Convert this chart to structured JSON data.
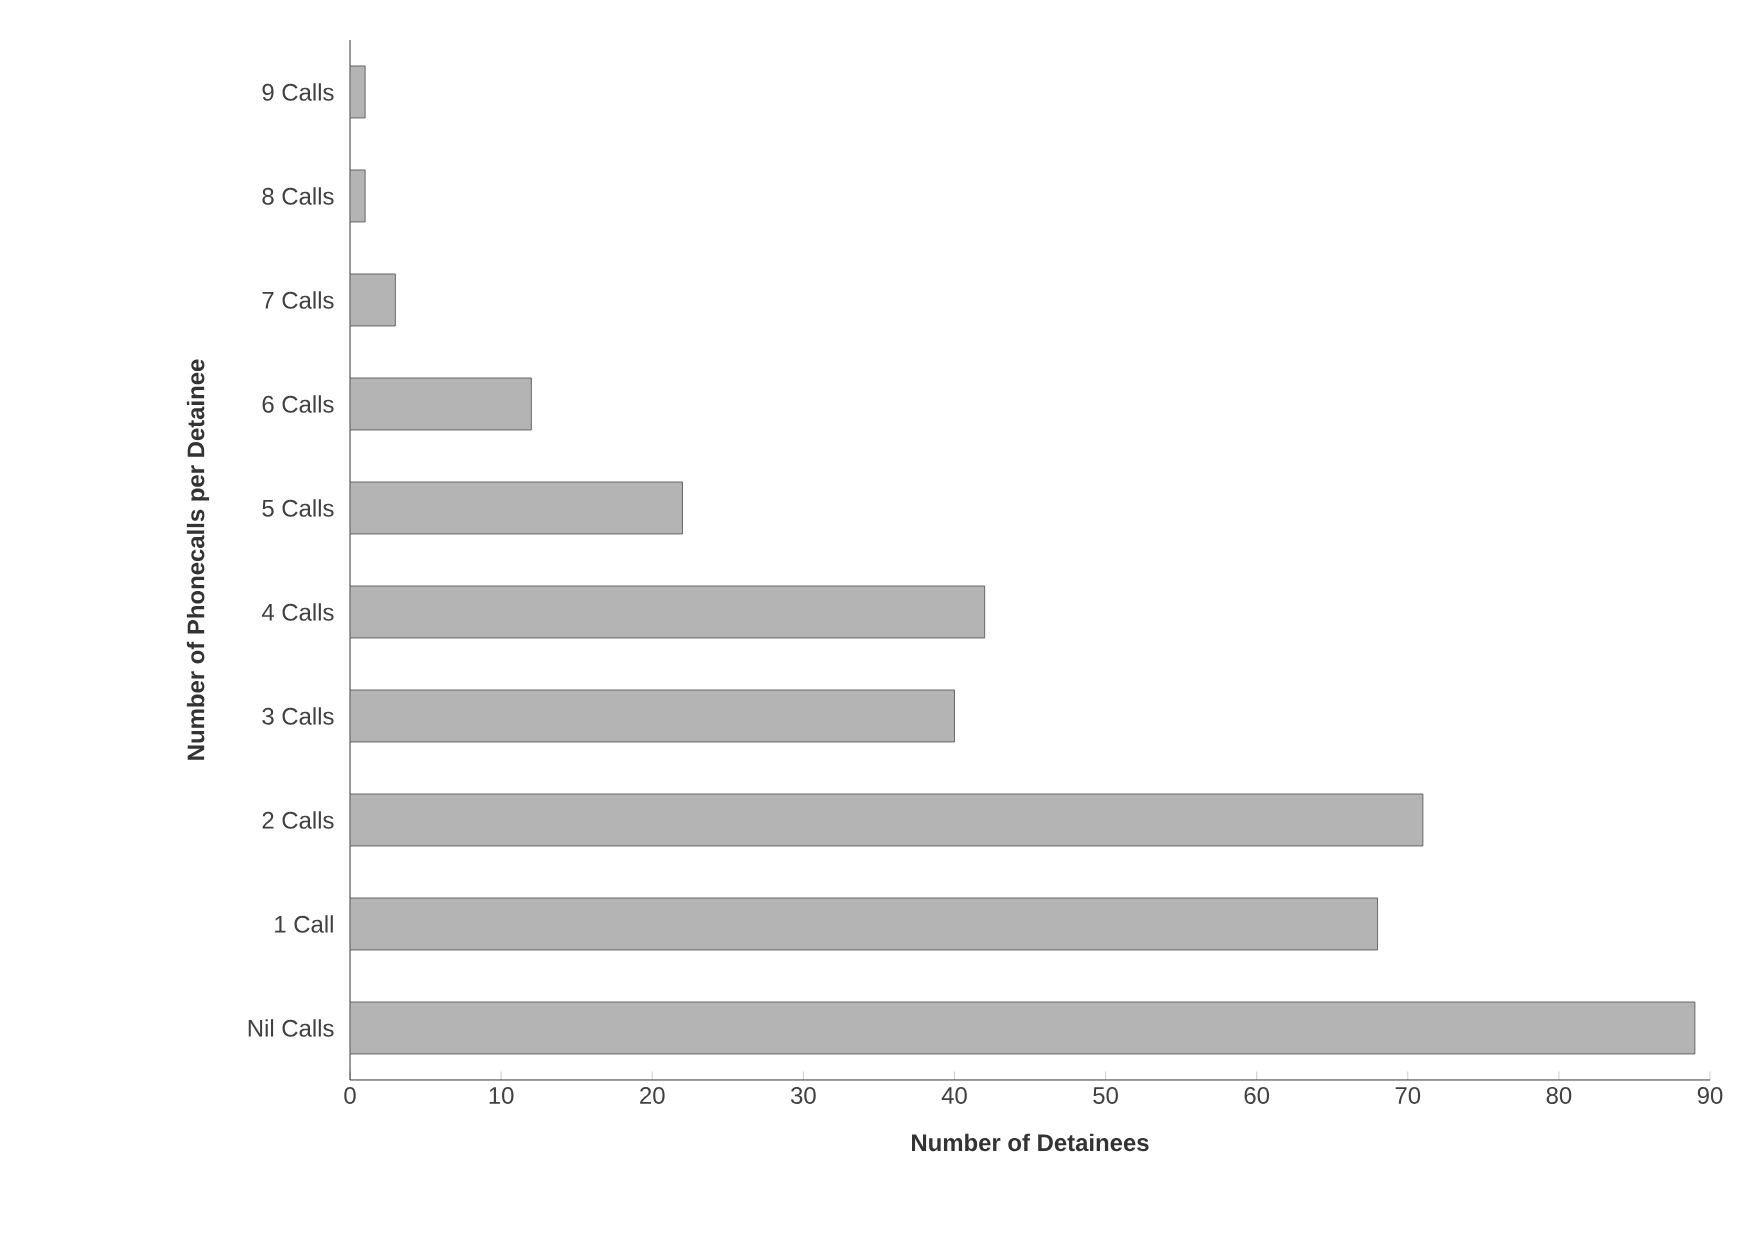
{
  "chart_data": {
    "type": "bar",
    "orientation": "horizontal",
    "xlabel": "Number of Detainees",
    "ylabel": "Number of Phonecalls per Detainee",
    "categories": [
      "9 Calls",
      "8 Calls",
      "7 Calls",
      "6 Calls",
      "5 Calls",
      "4 Calls",
      "3 Calls",
      "2 Calls",
      "1 Call",
      "Nil Calls"
    ],
    "values": [
      1,
      1,
      3,
      12,
      22,
      42,
      40,
      71,
      68,
      89
    ],
    "color": "#b4b4b4",
    "xlim": [
      0,
      90
    ],
    "xticks": [
      0,
      10,
      20,
      30,
      40,
      50,
      60,
      70,
      80,
      90
    ],
    "grid": false
  }
}
